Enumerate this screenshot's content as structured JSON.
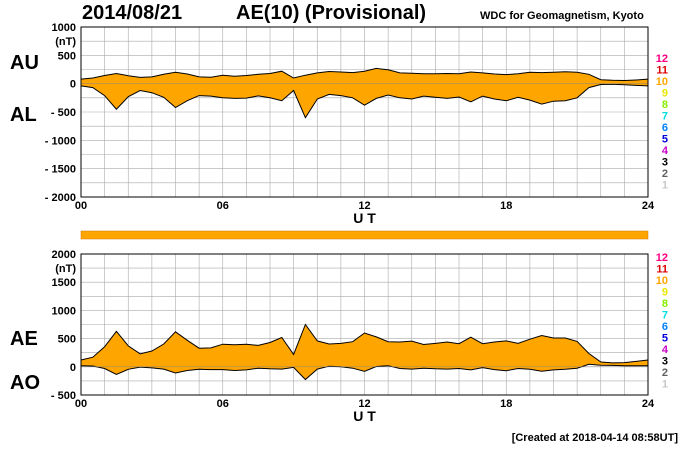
{
  "header": {
    "date": "2014/08/21",
    "index_title": "AE(10) (Provisional)",
    "source": "WDC for Geomagnetism, Kyoto"
  },
  "footer": {
    "created": "[Created at 2018-04-14 08:58UT]"
  },
  "colors": {
    "fill": "#ffa500",
    "grid": "#aaaaaa",
    "line": "#000000"
  },
  "station_legend": [
    {
      "label": "12",
      "color": "#ff0080"
    },
    {
      "label": "11",
      "color": "#dd0000"
    },
    {
      "label": "10",
      "color": "#ffa500"
    },
    {
      "label": "9",
      "color": "#e8e800"
    },
    {
      "label": "8",
      "color": "#88ee00"
    },
    {
      "label": "7",
      "color": "#00dddd"
    },
    {
      "label": "6",
      "color": "#0080ff"
    },
    {
      "label": "5",
      "color": "#0000dd"
    },
    {
      "label": "4",
      "color": "#cc00cc"
    },
    {
      "label": "3",
      "color": "#000000"
    },
    {
      "label": "2",
      "color": "#606060"
    },
    {
      "label": "1",
      "color": "#c8c8c8"
    }
  ],
  "chart_data": [
    {
      "type": "area",
      "panel": "upper",
      "upper_label": "AU",
      "lower_label": "AL",
      "ylabel": "(nT)",
      "xlabel": "U T",
      "xlim": [
        0,
        24
      ],
      "ylim": [
        -2000,
        1000
      ],
      "x_ticks": [
        "00",
        "06",
        "12",
        "18",
        "24"
      ],
      "y_ticks": [
        "1000",
        "500",
        "0",
        "- 500",
        "- 1000",
        "- 1500",
        "- 2000"
      ],
      "grid": true,
      "hours": [
        0,
        0.5,
        1,
        1.5,
        2,
        2.5,
        3,
        3.5,
        4,
        4.5,
        5,
        5.5,
        6,
        6.5,
        7,
        7.5,
        8,
        8.5,
        9,
        9.5,
        10,
        10.5,
        11,
        11.5,
        12,
        12.5,
        13,
        13.5,
        14,
        14.5,
        15,
        15.5,
        16,
        16.5,
        17,
        17.5,
        18,
        18.5,
        19,
        19.5,
        20,
        20.5,
        21,
        21.5,
        22,
        22.5,
        23,
        23.5,
        24
      ],
      "series": [
        {
          "name": "AU",
          "values": [
            80,
            100,
            145,
            180,
            140,
            110,
            120,
            165,
            200,
            170,
            120,
            115,
            150,
            130,
            145,
            165,
            180,
            220,
            100,
            150,
            190,
            215,
            205,
            195,
            220,
            270,
            245,
            190,
            185,
            175,
            175,
            180,
            175,
            205,
            190,
            170,
            160,
            175,
            200,
            195,
            200,
            210,
            200,
            165,
            70,
            60,
            55,
            65,
            80
          ]
        },
        {
          "name": "AL",
          "values": [
            -40,
            -70,
            -210,
            -450,
            -230,
            -120,
            -160,
            -240,
            -420,
            -300,
            -210,
            -220,
            -250,
            -260,
            -255,
            -215,
            -250,
            -300,
            -120,
            -600,
            -270,
            -190,
            -210,
            -250,
            -380,
            -260,
            -200,
            -250,
            -270,
            -220,
            -240,
            -260,
            -235,
            -320,
            -220,
            -270,
            -300,
            -240,
            -290,
            -360,
            -310,
            -300,
            -250,
            -70,
            -15,
            -10,
            -20,
            -30,
            -40
          ]
        }
      ]
    },
    {
      "type": "area",
      "panel": "lower",
      "upper_label": "AE",
      "lower_label": "AO",
      "ylabel": "(nT)",
      "xlabel": "U T",
      "xlim": [
        0,
        24
      ],
      "ylim": [
        -500,
        2000
      ],
      "x_ticks": [
        "00",
        "06",
        "12",
        "18",
        "24"
      ],
      "y_ticks": [
        "2000",
        "1500",
        "1000",
        "500",
        "0",
        "- 500"
      ],
      "grid": true,
      "hours": [
        0,
        0.5,
        1,
        1.5,
        2,
        2.5,
        3,
        3.5,
        4,
        4.5,
        5,
        5.5,
        6,
        6.5,
        7,
        7.5,
        8,
        8.5,
        9,
        9.5,
        10,
        10.5,
        11,
        11.5,
        12,
        12.5,
        13,
        13.5,
        14,
        14.5,
        15,
        15.5,
        16,
        16.5,
        17,
        17.5,
        18,
        18.5,
        19,
        19.5,
        20,
        20.5,
        21,
        21.5,
        22,
        22.5,
        23,
        23.5,
        24
      ],
      "series": [
        {
          "name": "AE",
          "values": [
            120,
            170,
            355,
            630,
            370,
            230,
            280,
            405,
            620,
            470,
            330,
            335,
            400,
            390,
            400,
            380,
            430,
            520,
            220,
            750,
            460,
            405,
            415,
            445,
            600,
            530,
            445,
            440,
            455,
            395,
            415,
            440,
            410,
            525,
            410,
            440,
            460,
            415,
            490,
            555,
            510,
            510,
            450,
            235,
            85,
            70,
            75,
            95,
            120
          ]
        },
        {
          "name": "AO",
          "values": [
            20,
            15,
            -30,
            -135,
            -45,
            -5,
            -20,
            -40,
            -110,
            -65,
            -45,
            -50,
            -50,
            -65,
            -55,
            -25,
            -35,
            -40,
            -10,
            -225,
            -40,
            10,
            0,
            -25,
            -80,
            5,
            20,
            -30,
            -40,
            -25,
            -35,
            -40,
            -30,
            -55,
            -15,
            -50,
            -70,
            -30,
            -45,
            -80,
            -55,
            -45,
            -25,
            45,
            28,
            25,
            18,
            18,
            20
          ]
        }
      ]
    }
  ],
  "separator_bar": {
    "label_color": "#ffa500"
  }
}
